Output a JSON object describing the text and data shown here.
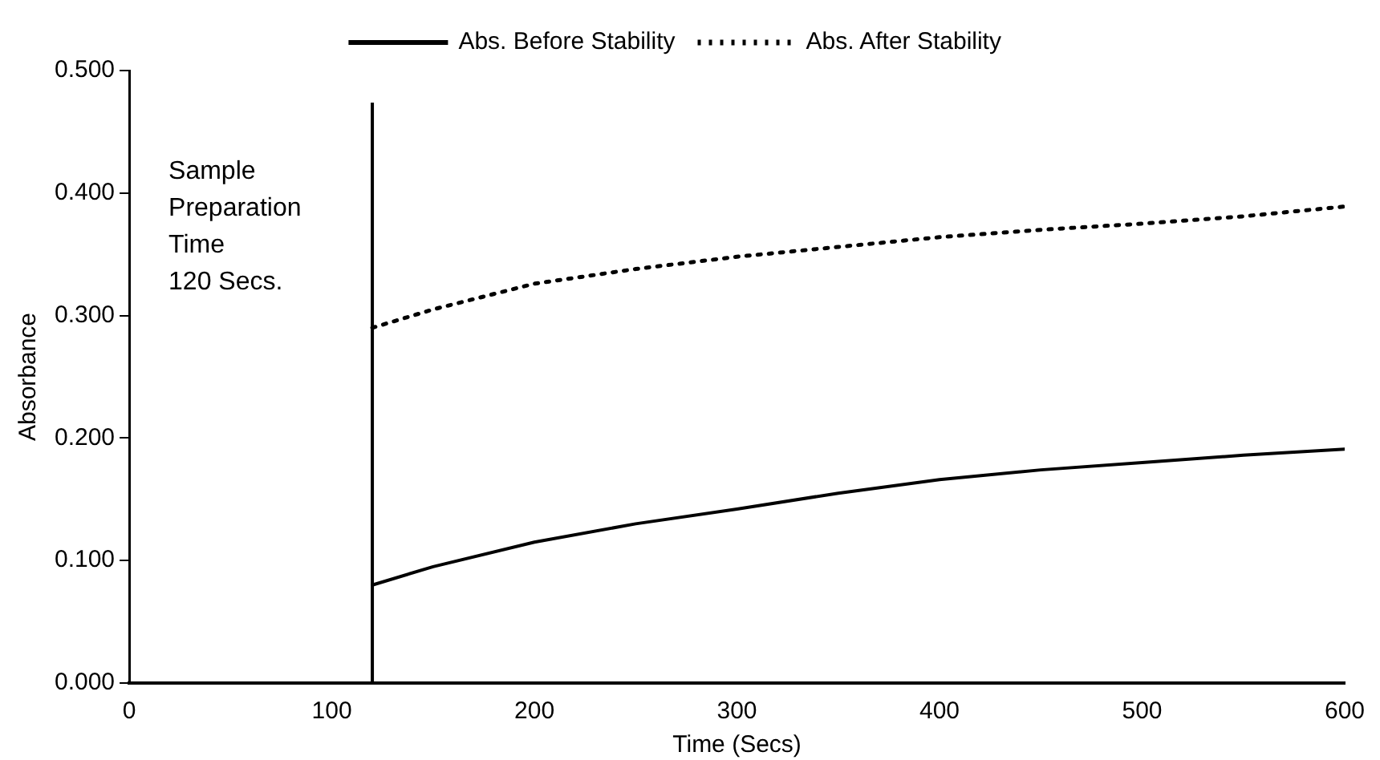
{
  "chart_data": {
    "type": "line",
    "xlabel": "Time (Secs)",
    "ylabel": "Absorbance",
    "x": [
      120,
      150,
      200,
      250,
      300,
      350,
      400,
      450,
      500,
      550,
      600
    ],
    "series": [
      {
        "name": "Abs. Before Stability",
        "color": "#000000",
        "line_style": "solid",
        "values": [
          0.08,
          0.095,
          0.115,
          0.13,
          0.142,
          0.155,
          0.166,
          0.174,
          0.18,
          0.186,
          0.191
        ]
      },
      {
        "name": "Abs. After Stability",
        "color": "#000000",
        "line_style": "dotted",
        "values": [
          0.29,
          0.305,
          0.326,
          0.338,
          0.348,
          0.356,
          0.364,
          0.37,
          0.375,
          0.381,
          0.389
        ]
      }
    ],
    "xlim": [
      0,
      600
    ],
    "xticks": [
      0,
      100,
      200,
      300,
      400,
      500,
      600
    ],
    "ylim": [
      0,
      0.5
    ],
    "yticks": [
      {
        "value": 0,
        "label": "0.000"
      },
      {
        "value": 0.1,
        "label": "0.100"
      },
      {
        "value": 0.2,
        "label": "0.200"
      },
      {
        "value": 0.3,
        "label": "0.300"
      },
      {
        "value": 0.4,
        "label": "0.400"
      },
      {
        "value": 0.5,
        "label": "0.500"
      }
    ],
    "ref_lines": [
      {
        "axis": "x",
        "value": 120,
        "label": "Sample Preparation Time 120 Secs.",
        "color": "#000000"
      }
    ],
    "grid": false,
    "legend": "top",
    "marker": "none"
  }
}
